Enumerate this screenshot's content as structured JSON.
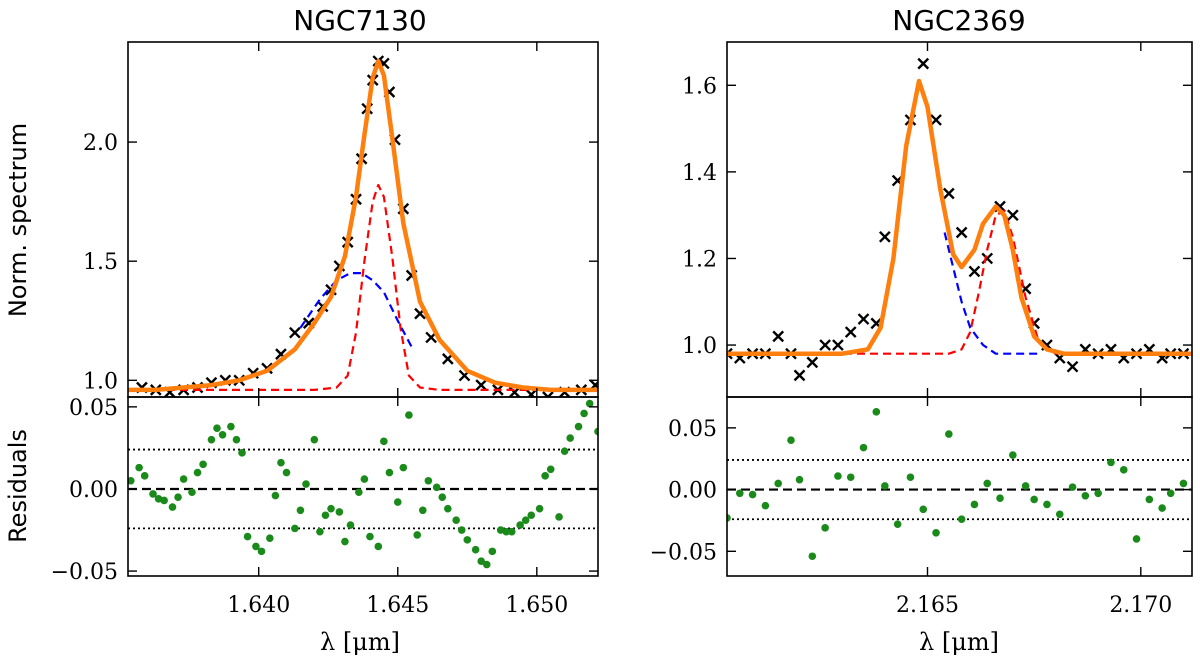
{
  "chart_data": [
    {
      "type": "line",
      "title": "NGC7130",
      "ylabel": "Norm. spectrum",
      "xlim": [
        1.6353,
        1.6522
      ],
      "ylim": [
        0.93,
        2.42
      ],
      "yticks": [
        1.0,
        1.5,
        2.0
      ],
      "ytick_labels": [
        "1.0",
        "1.5",
        "2.0"
      ],
      "data_marker": "x",
      "data_color": "#000000",
      "data_x": [
        1.6358,
        1.6363,
        1.6368,
        1.6373,
        1.6378,
        1.6383,
        1.6388,
        1.6393,
        1.6398,
        1.6403,
        1.6408,
        1.6413,
        1.6418,
        1.6423,
        1.6426,
        1.6429,
        1.6432,
        1.6435,
        1.6437,
        1.6439,
        1.6441,
        1.6443,
        1.6445,
        1.6447,
        1.6449,
        1.6452,
        1.6455,
        1.6458,
        1.6462,
        1.6468,
        1.6474,
        1.648,
        1.6486,
        1.6492,
        1.6498,
        1.6504,
        1.651,
        1.6516,
        1.6521
      ],
      "data_y": [
        0.97,
        0.96,
        0.95,
        0.96,
        0.97,
        0.99,
        1.0,
        1.0,
        1.03,
        1.05,
        1.11,
        1.2,
        1.24,
        1.31,
        1.38,
        1.48,
        1.58,
        1.76,
        1.93,
        2.14,
        2.26,
        2.34,
        2.33,
        2.21,
        2.01,
        1.72,
        1.44,
        1.28,
        1.18,
        1.09,
        1.02,
        0.98,
        0.96,
        0.95,
        0.94,
        0.93,
        0.95,
        0.96,
        0.98
      ],
      "series": [
        {
          "name": "",
          "style": "solid",
          "color": "#ff7f0e",
          "x": [
            1.6353,
            1.6363,
            1.6373,
            1.6383,
            1.6393,
            1.6403,
            1.6413,
            1.642,
            1.6426,
            1.6431,
            1.6435,
            1.6438,
            1.6441,
            1.6443,
            1.6445,
            1.6448,
            1.6452,
            1.6458,
            1.6465,
            1.6475,
            1.6485,
            1.6495,
            1.6505,
            1.6515,
            1.6522
          ],
          "y": [
            0.96,
            0.96,
            0.97,
            0.98,
            1.0,
            1.04,
            1.13,
            1.24,
            1.35,
            1.52,
            1.77,
            2.03,
            2.27,
            2.34,
            2.28,
            2.02,
            1.66,
            1.33,
            1.17,
            1.04,
            0.99,
            0.97,
            0.96,
            0.96,
            0.96
          ]
        },
        {
          "name": "",
          "style": "dashed",
          "color": "#ff0000",
          "x": [
            1.6353,
            1.642,
            1.6428,
            1.6432,
            1.6435,
            1.6438,
            1.6441,
            1.6443,
            1.6445,
            1.6448,
            1.6451,
            1.6454,
            1.6458,
            1.6465,
            1.6522
          ],
          "y": [
            0.96,
            0.96,
            0.97,
            1.02,
            1.2,
            1.5,
            1.75,
            1.82,
            1.77,
            1.52,
            1.22,
            1.02,
            0.97,
            0.96,
            0.96
          ]
        },
        {
          "name": "",
          "style": "dashed",
          "color": "#0000ff",
          "x": [
            1.6415,
            1.6422,
            1.6428,
            1.6433,
            1.6437,
            1.6441,
            1.6445,
            1.645,
            1.6455
          ],
          "y": [
            1.22,
            1.34,
            1.42,
            1.45,
            1.45,
            1.42,
            1.37,
            1.25,
            1.14
          ]
        }
      ],
      "residuals": {
        "ylabel": "Residuals",
        "ylim": [
          -0.053,
          0.056
        ],
        "yticks": [
          -0.05,
          0.0,
          0.05
        ],
        "ytick_labels": [
          "−0.05",
          "0.00",
          "0.05"
        ],
        "hlines": [
          {
            "y": 0.0,
            "style": "dashed"
          },
          {
            "y": 0.024,
            "style": "dotted"
          },
          {
            "y": -0.024,
            "style": "dotted"
          }
        ],
        "marker_color": "#1a8a1a",
        "x": [
          1.6354,
          1.6357,
          1.6359,
          1.6362,
          1.6364,
          1.6366,
          1.6369,
          1.6371,
          1.6373,
          1.6376,
          1.6378,
          1.638,
          1.6383,
          1.6385,
          1.6387,
          1.639,
          1.6392,
          1.6394,
          1.6396,
          1.6399,
          1.6401,
          1.6404,
          1.6406,
          1.6408,
          1.641,
          1.6413,
          1.6415,
          1.6417,
          1.642,
          1.6422,
          1.6424,
          1.6426,
          1.6429,
          1.6431,
          1.6433,
          1.6436,
          1.6438,
          1.644,
          1.6443,
          1.6445,
          1.6447,
          1.645,
          1.6452,
          1.6454,
          1.6457,
          1.6459,
          1.6461,
          1.6464,
          1.6466,
          1.6468,
          1.6471,
          1.6473,
          1.6475,
          1.6478,
          1.648,
          1.6482,
          1.6484,
          1.6487,
          1.6489,
          1.6491,
          1.6494,
          1.6496,
          1.6498,
          1.6501,
          1.6503,
          1.6505,
          1.6508,
          1.651,
          1.6512,
          1.6515,
          1.6517,
          1.6519,
          1.6522
        ],
        "y": [
          0.005,
          0.013,
          0.008,
          -0.003,
          -0.006,
          -0.007,
          -0.011,
          -0.005,
          0.006,
          -0.002,
          0.01,
          0.015,
          0.03,
          0.037,
          0.033,
          0.038,
          0.03,
          0.022,
          -0.029,
          -0.035,
          -0.038,
          -0.03,
          -0.004,
          0.016,
          0.01,
          -0.024,
          -0.013,
          0.003,
          0.03,
          -0.026,
          -0.016,
          -0.012,
          -0.014,
          -0.032,
          -0.022,
          -0.002,
          0.006,
          -0.029,
          -0.035,
          0.029,
          0.01,
          -0.008,
          0.013,
          0.045,
          -0.028,
          -0.013,
          0.005,
          0.001,
          -0.005,
          -0.012,
          -0.019,
          -0.025,
          -0.031,
          -0.037,
          -0.044,
          -0.046,
          -0.038,
          -0.025,
          -0.026,
          -0.026,
          -0.022,
          -0.019,
          -0.016,
          -0.012,
          0.008,
          0.012,
          -0.017,
          0.023,
          0.031,
          0.038,
          0.046,
          0.052,
          0.035
        ]
      }
    },
    {
      "type": "line",
      "title": "NGC2369",
      "ylabel": "",
      "xlim": [
        2.1603,
        2.1712
      ],
      "ylim": [
        0.88,
        1.7
      ],
      "yticks": [
        1.0,
        1.2,
        1.4,
        1.6
      ],
      "ytick_labels": [
        "1.0",
        "1.2",
        "1.4",
        "1.6"
      ],
      "data_marker": "x",
      "data_color": "#000000",
      "data_x": [
        2.1603,
        2.1606,
        2.1609,
        2.1612,
        2.1615,
        2.1618,
        2.162,
        2.1623,
        2.1626,
        2.1629,
        2.1632,
        2.1635,
        2.1638,
        2.164,
        2.1643,
        2.1646,
        2.1649,
        2.1652,
        2.1655,
        2.1658,
        2.1661,
        2.1664,
        2.1667,
        2.167,
        2.1673,
        2.1675,
        2.1678,
        2.1681,
        2.1684,
        2.1687,
        2.169,
        2.1693,
        2.1696,
        2.1699,
        2.1702,
        2.1705,
        2.1707,
        2.171
      ],
      "data_y": [
        0.98,
        0.97,
        0.98,
        0.98,
        1.02,
        0.98,
        0.93,
        0.96,
        1.0,
        1.0,
        1.03,
        1.06,
        1.05,
        1.25,
        1.38,
        1.52,
        1.65,
        1.52,
        1.35,
        1.26,
        1.17,
        1.2,
        1.32,
        1.3,
        1.13,
        1.05,
        1.0,
        0.97,
        0.95,
        0.99,
        0.98,
        0.99,
        0.97,
        0.98,
        0.99,
        0.97,
        0.98,
        0.98
      ],
      "series": [
        {
          "name": "",
          "style": "solid",
          "color": "#ff7f0e",
          "x": [
            2.1603,
            2.163,
            2.1636,
            2.1639,
            2.1642,
            2.1645,
            2.1648,
            2.165,
            2.1653,
            2.1656,
            2.1658,
            2.1661,
            2.1663,
            2.1666,
            2.1668,
            2.167,
            2.1672,
            2.1675,
            2.1678,
            2.1682,
            2.1712
          ],
          "y": [
            0.98,
            0.98,
            0.99,
            1.04,
            1.2,
            1.46,
            1.61,
            1.55,
            1.36,
            1.21,
            1.18,
            1.22,
            1.28,
            1.32,
            1.3,
            1.22,
            1.11,
            1.02,
            0.99,
            0.98,
            0.98
          ]
        },
        {
          "name": "",
          "style": "dashed",
          "color": "#ff0000",
          "x": [
            2.1603,
            2.1655,
            2.1658,
            2.166,
            2.1662,
            2.1664,
            2.1666,
            2.1668,
            2.167,
            2.1673,
            2.1676,
            2.168,
            2.1712
          ],
          "y": [
            0.98,
            0.98,
            0.99,
            1.03,
            1.12,
            1.22,
            1.3,
            1.31,
            1.25,
            1.11,
            1.01,
            0.98,
            0.98
          ]
        },
        {
          "name": "",
          "style": "dashed",
          "color": "#0000ff",
          "x": [
            2.1654,
            2.1656,
            2.1658,
            2.166,
            2.1663,
            2.1666,
            2.1669,
            2.1672,
            2.1676
          ],
          "y": [
            1.26,
            1.18,
            1.1,
            1.04,
            1.0,
            0.98,
            0.98,
            0.98,
            0.98
          ]
        }
      ],
      "residuals": {
        "ylabel": "",
        "ylim": [
          -0.07,
          0.075
        ],
        "yticks": [
          -0.05,
          0.0,
          0.05
        ],
        "ytick_labels": [
          "−0.05",
          "0.00",
          "0.05"
        ],
        "hlines": [
          {
            "y": 0.0,
            "style": "dashed"
          },
          {
            "y": 0.024,
            "style": "dotted"
          },
          {
            "y": -0.024,
            "style": "dotted"
          }
        ],
        "marker_color": "#1a8a1a",
        "x": [
          2.1603,
          2.1606,
          2.1609,
          2.1612,
          2.1615,
          2.1618,
          2.162,
          2.1623,
          2.1626,
          2.1629,
          2.1632,
          2.1635,
          2.1638,
          2.164,
          2.1643,
          2.1646,
          2.1649,
          2.1652,
          2.1655,
          2.1658,
          2.1661,
          2.1664,
          2.1667,
          2.167,
          2.1673,
          2.1675,
          2.1678,
          2.1681,
          2.1684,
          2.1687,
          2.169,
          2.1693,
          2.1696,
          2.1699,
          2.1702,
          2.1705,
          2.1707,
          2.171
        ],
        "y": [
          -0.023,
          -0.003,
          -0.004,
          -0.013,
          0.005,
          0.04,
          0.008,
          -0.054,
          -0.031,
          0.011,
          0.01,
          0.034,
          0.063,
          0.003,
          -0.028,
          0.01,
          -0.016,
          -0.035,
          0.045,
          -0.024,
          -0.012,
          0.005,
          -0.007,
          0.028,
          0.003,
          -0.008,
          -0.012,
          -0.02,
          0.002,
          -0.005,
          -0.003,
          0.022,
          0.016,
          -0.04,
          -0.008,
          -0.015,
          -0.003,
          0.005
        ]
      }
    }
  ],
  "shared": {
    "xlabel": "λ [μm]",
    "xticks": [
      [
        1.64,
        1.645,
        1.65
      ],
      [
        2.165,
        2.17
      ]
    ],
    "xtick_labels": [
      [
        "1.640",
        "1.645",
        "1.650"
      ],
      [
        "2.165",
        "2.170"
      ]
    ]
  }
}
